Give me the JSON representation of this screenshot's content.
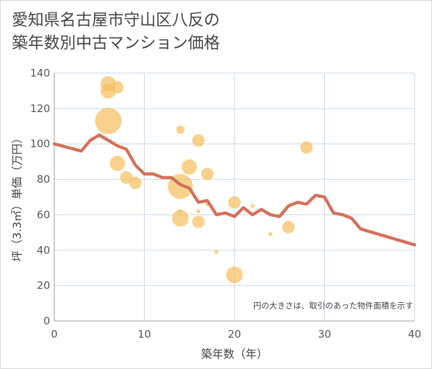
{
  "chart_data": {
    "type": "scatter",
    "title_lines": [
      "愛知県名古屋市守山区八反の",
      "築年数別中古マンション価格"
    ],
    "xlabel": "築年数（年）",
    "ylabel": "坪（3.3㎡）単価（万円）",
    "xlim": [
      0,
      40
    ],
    "ylim": [
      0,
      140
    ],
    "x_ticks": [
      0,
      10,
      20,
      30,
      40
    ],
    "y_ticks": [
      0,
      20,
      40,
      60,
      80,
      100,
      120,
      140
    ],
    "grid": true,
    "annotation": "円の大きさは、取引のあった物件面積を示す",
    "colors": {
      "bubble": "#f5c060",
      "trend": "#d4705a",
      "grid": "#c8d6e6",
      "axis": "#999999"
    },
    "bubbles": [
      {
        "x": 6,
        "y": 134,
        "size": 11
      },
      {
        "x": 6,
        "y": 130,
        "size": 11
      },
      {
        "x": 7,
        "y": 132,
        "size": 9
      },
      {
        "x": 6,
        "y": 113,
        "size": 19
      },
      {
        "x": 7,
        "y": 89,
        "size": 11
      },
      {
        "x": 8,
        "y": 81,
        "size": 9
      },
      {
        "x": 9,
        "y": 78,
        "size": 9
      },
      {
        "x": 14,
        "y": 108,
        "size": 6
      },
      {
        "x": 16,
        "y": 102,
        "size": 9
      },
      {
        "x": 15,
        "y": 87,
        "size": 11
      },
      {
        "x": 17,
        "y": 83,
        "size": 9
      },
      {
        "x": 14,
        "y": 76,
        "size": 18
      },
      {
        "x": 14,
        "y": 62,
        "size": 3
      },
      {
        "x": 14,
        "y": 58,
        "size": 12
      },
      {
        "x": 16,
        "y": 62,
        "size": 3
      },
      {
        "x": 16,
        "y": 56,
        "size": 9
      },
      {
        "x": 17,
        "y": 66,
        "size": 3
      },
      {
        "x": 18,
        "y": 39,
        "size": 3
      },
      {
        "x": 20,
        "y": 67,
        "size": 9
      },
      {
        "x": 22,
        "y": 65,
        "size": 3
      },
      {
        "x": 24,
        "y": 49,
        "size": 3
      },
      {
        "x": 26,
        "y": 53,
        "size": 9
      },
      {
        "x": 28,
        "y": 98,
        "size": 9
      },
      {
        "x": 20,
        "y": 26,
        "size": 12
      }
    ],
    "trend": [
      {
        "x": 0,
        "y": 100
      },
      {
        "x": 3,
        "y": 96
      },
      {
        "x": 4,
        "y": 102
      },
      {
        "x": 5,
        "y": 105
      },
      {
        "x": 6,
        "y": 102
      },
      {
        "x": 7,
        "y": 99
      },
      {
        "x": 8,
        "y": 97
      },
      {
        "x": 9,
        "y": 88
      },
      {
        "x": 10,
        "y": 83
      },
      {
        "x": 11,
        "y": 83
      },
      {
        "x": 12,
        "y": 81
      },
      {
        "x": 13,
        "y": 81
      },
      {
        "x": 14,
        "y": 77
      },
      {
        "x": 15,
        "y": 75
      },
      {
        "x": 16,
        "y": 67
      },
      {
        "x": 17,
        "y": 68
      },
      {
        "x": 18,
        "y": 60
      },
      {
        "x": 19,
        "y": 61
      },
      {
        "x": 20,
        "y": 59
      },
      {
        "x": 21,
        "y": 64
      },
      {
        "x": 22,
        "y": 60
      },
      {
        "x": 23,
        "y": 63
      },
      {
        "x": 24,
        "y": 60
      },
      {
        "x": 25,
        "y": 59
      },
      {
        "x": 26,
        "y": 65
      },
      {
        "x": 27,
        "y": 67
      },
      {
        "x": 28,
        "y": 66
      },
      {
        "x": 29,
        "y": 71
      },
      {
        "x": 30,
        "y": 70
      },
      {
        "x": 31,
        "y": 61
      },
      {
        "x": 32,
        "y": 60
      },
      {
        "x": 33,
        "y": 58
      },
      {
        "x": 34,
        "y": 52
      },
      {
        "x": 40,
        "y": 43
      }
    ]
  }
}
